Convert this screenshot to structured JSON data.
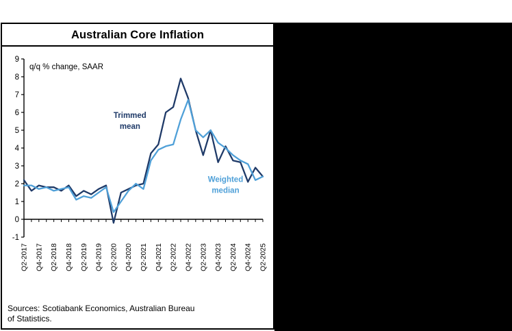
{
  "page": {
    "background_color": "#ffffff",
    "side_panel_color": "#000000"
  },
  "chart": {
    "title": "Australian Core Inflation",
    "unit_label": "q/q % change, SAAR",
    "sources_line1": "Sources: Scotiabank Economics, Australian Bureau",
    "sources_line2": "of Statistics."
  },
  "chart_data": {
    "type": "line",
    "title": "Australian Core Inflation",
    "ylabel": "q/q % change, SAAR",
    "xlabel": "",
    "ylim": [
      -1,
      9
    ],
    "y_ticks": [
      -1,
      0,
      1,
      2,
      3,
      4,
      5,
      6,
      7,
      8,
      9
    ],
    "grid": false,
    "legend_position": "inline-annotations",
    "categories": [
      "Q2-2017",
      "Q3-2017",
      "Q4-2017",
      "Q1-2018",
      "Q2-2018",
      "Q3-2018",
      "Q4-2018",
      "Q1-2019",
      "Q2-2019",
      "Q3-2019",
      "Q4-2019",
      "Q1-2020",
      "Q2-2020",
      "Q3-2020",
      "Q4-2020",
      "Q1-2021",
      "Q2-2021",
      "Q3-2021",
      "Q4-2021",
      "Q1-2022",
      "Q2-2022",
      "Q3-2022",
      "Q4-2022",
      "Q1-2023",
      "Q2-2023",
      "Q3-2023",
      "Q4-2023",
      "Q1-2024",
      "Q2-2024",
      "Q3-2024",
      "Q4-2024",
      "Q1-2025",
      "Q2-2025"
    ],
    "x_tick_labels": [
      "Q2-2017",
      "Q4-2017",
      "Q2-2018",
      "Q4-2018",
      "Q2-2019",
      "Q4-2019",
      "Q2-2020",
      "Q4-2020",
      "Q2-2021",
      "Q4-2021",
      "Q2-2022",
      "Q4-2022",
      "Q2-2023",
      "Q4-2023",
      "Q2-2024",
      "Q4-2024",
      "Q2-2025"
    ],
    "series": [
      {
        "name": "Trimmed mean",
        "color": "#1f3a68",
        "values": [
          2.2,
          1.6,
          1.9,
          1.8,
          1.8,
          1.6,
          1.9,
          1.3,
          1.6,
          1.4,
          1.7,
          1.9,
          -0.2,
          1.5,
          1.7,
          1.9,
          2.0,
          3.7,
          4.2,
          6.0,
          6.3,
          7.9,
          6.8,
          5.0,
          3.6,
          5.0,
          3.2,
          4.1,
          3.3,
          3.2,
          2.1,
          2.9,
          2.4
        ]
      },
      {
        "name": "Weighted median",
        "color": "#4fa0d8",
        "values": [
          1.9,
          1.9,
          1.7,
          1.8,
          1.6,
          1.7,
          1.8,
          1.1,
          1.3,
          1.2,
          1.5,
          1.8,
          0.4,
          1.0,
          1.6,
          2.0,
          1.7,
          3.3,
          3.9,
          4.1,
          4.2,
          5.6,
          6.7,
          5.0,
          4.6,
          5.0,
          4.3,
          4.0,
          3.6,
          3.3,
          3.1,
          2.2,
          2.4
        ]
      }
    ],
    "annotations": [
      {
        "lines": [
          "Trimmed",
          "mean"
        ],
        "x_index": 14.2,
        "y": 5.7,
        "color": "#1f3a68"
      },
      {
        "lines": [
          "Weighted",
          "median"
        ],
        "x_index": 27.0,
        "y": 2.1,
        "color": "#4fa0d8"
      }
    ]
  }
}
